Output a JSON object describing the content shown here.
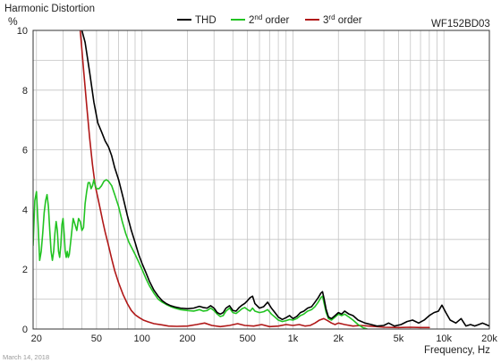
{
  "chart_data": {
    "type": "line",
    "title": "Harmonic Distortion",
    "ylabel": "%",
    "xlabel": "Frequency, Hz",
    "model": "WF152BD03",
    "date": "March 14, 2018",
    "x_scale": "log",
    "xlim": [
      19,
      20000
    ],
    "ylim": [
      0,
      10
    ],
    "grid": true,
    "legend_position": "top-center",
    "x_ticks": [
      {
        "value": 20,
        "label": "20"
      },
      {
        "value": 50,
        "label": "50"
      },
      {
        "value": 100,
        "label": "100"
      },
      {
        "value": 200,
        "label": "200"
      },
      {
        "value": 500,
        "label": "500"
      },
      {
        "value": 1000,
        "label": "1k"
      },
      {
        "value": 2000,
        "label": "2k"
      },
      {
        "value": 5000,
        "label": "5k"
      },
      {
        "value": 10000,
        "label": "10k"
      },
      {
        "value": 20000,
        "label": "20k"
      }
    ],
    "y_ticks": [
      {
        "value": 0,
        "label": "0"
      },
      {
        "value": 2,
        "label": "2"
      },
      {
        "value": 4,
        "label": "4"
      },
      {
        "value": 6,
        "label": "6"
      },
      {
        "value": 8,
        "label": "8"
      },
      {
        "value": 10,
        "label": "10"
      }
    ],
    "series": [
      {
        "name": "THD",
        "legend_base": "THD",
        "legend_sup": "",
        "legend_rest": "",
        "color": "#000000",
        "points": [
          [
            40,
            10
          ],
          [
            42,
            9.6
          ],
          [
            45,
            8.6
          ],
          [
            48,
            7.6
          ],
          [
            51,
            6.9
          ],
          [
            54,
            6.6
          ],
          [
            57,
            6.3
          ],
          [
            60,
            6.1
          ],
          [
            63,
            5.8
          ],
          [
            66,
            5.4
          ],
          [
            70,
            5.0
          ],
          [
            75,
            4.4
          ],
          [
            80,
            3.8
          ],
          [
            85,
            3.3
          ],
          [
            90,
            2.9
          ],
          [
            95,
            2.5
          ],
          [
            100,
            2.2
          ],
          [
            106,
            1.9
          ],
          [
            112,
            1.6
          ],
          [
            120,
            1.3
          ],
          [
            128,
            1.1
          ],
          [
            136,
            0.95
          ],
          [
            145,
            0.85
          ],
          [
            155,
            0.78
          ],
          [
            165,
            0.74
          ],
          [
            180,
            0.7
          ],
          [
            200,
            0.68
          ],
          [
            220,
            0.7
          ],
          [
            240,
            0.76
          ],
          [
            255,
            0.72
          ],
          [
            270,
            0.7
          ],
          [
            285,
            0.78
          ],
          [
            300,
            0.7
          ],
          [
            315,
            0.55
          ],
          [
            330,
            0.5
          ],
          [
            345,
            0.55
          ],
          [
            360,
            0.7
          ],
          [
            380,
            0.78
          ],
          [
            400,
            0.62
          ],
          [
            420,
            0.6
          ],
          [
            440,
            0.72
          ],
          [
            460,
            0.8
          ],
          [
            480,
            0.86
          ],
          [
            500,
            0.95
          ],
          [
            520,
            1.05
          ],
          [
            540,
            1.1
          ],
          [
            560,
            0.85
          ],
          [
            600,
            0.7
          ],
          [
            640,
            0.75
          ],
          [
            680,
            0.9
          ],
          [
            720,
            0.7
          ],
          [
            760,
            0.55
          ],
          [
            800,
            0.4
          ],
          [
            850,
            0.32
          ],
          [
            900,
            0.38
          ],
          [
            950,
            0.45
          ],
          [
            1000,
            0.35
          ],
          [
            1060,
            0.42
          ],
          [
            1120,
            0.55
          ],
          [
            1180,
            0.6
          ],
          [
            1250,
            0.7
          ],
          [
            1330,
            0.75
          ],
          [
            1400,
            0.9
          ],
          [
            1470,
            1.05
          ],
          [
            1530,
            1.2
          ],
          [
            1570,
            1.25
          ],
          [
            1610,
            1.0
          ],
          [
            1660,
            0.65
          ],
          [
            1720,
            0.4
          ],
          [
            1800,
            0.35
          ],
          [
            1900,
            0.45
          ],
          [
            2000,
            0.55
          ],
          [
            2100,
            0.5
          ],
          [
            2200,
            0.6
          ],
          [
            2350,
            0.5
          ],
          [
            2500,
            0.45
          ],
          [
            2700,
            0.3
          ],
          [
            3000,
            0.2
          ],
          [
            3300,
            0.15
          ],
          [
            3600,
            0.1
          ],
          [
            4000,
            0.12
          ],
          [
            4300,
            0.2
          ],
          [
            4700,
            0.1
          ],
          [
            5200,
            0.15
          ],
          [
            5700,
            0.25
          ],
          [
            6200,
            0.3
          ],
          [
            6800,
            0.2
          ],
          [
            7400,
            0.3
          ],
          [
            8000,
            0.45
          ],
          [
            8600,
            0.55
          ],
          [
            9200,
            0.6
          ],
          [
            9700,
            0.8
          ],
          [
            10300,
            0.55
          ],
          [
            11000,
            0.3
          ],
          [
            12000,
            0.2
          ],
          [
            13000,
            0.35
          ],
          [
            14000,
            0.1
          ],
          [
            15000,
            0.15
          ],
          [
            16000,
            0.1
          ],
          [
            17000,
            0.15
          ],
          [
            18000,
            0.2
          ],
          [
            19000,
            0.15
          ],
          [
            20000,
            0.1
          ]
        ]
      },
      {
        "name": "2nd order",
        "legend_base": "2",
        "legend_sup": "nd",
        "legend_rest": " order",
        "color": "#22c322",
        "points": [
          [
            19,
            2.8
          ],
          [
            19.5,
            4.3
          ],
          [
            20,
            4.6
          ],
          [
            20.5,
            3.5
          ],
          [
            21,
            2.3
          ],
          [
            21.5,
            2.6
          ],
          [
            22,
            3.2
          ],
          [
            22.5,
            3.9
          ],
          [
            23,
            4.3
          ],
          [
            23.5,
            4.5
          ],
          [
            24,
            4.1
          ],
          [
            24.5,
            3.3
          ],
          [
            25,
            2.6
          ],
          [
            25.5,
            2.3
          ],
          [
            26,
            2.6
          ],
          [
            26.5,
            3.2
          ],
          [
            27,
            3.6
          ],
          [
            27.5,
            3.3
          ],
          [
            28,
            2.6
          ],
          [
            28.5,
            2.4
          ],
          [
            29,
            2.8
          ],
          [
            29.5,
            3.5
          ],
          [
            30,
            3.7
          ],
          [
            30.5,
            3.2
          ],
          [
            31,
            2.6
          ],
          [
            31.5,
            2.4
          ],
          [
            32,
            2.6
          ],
          [
            32.5,
            2.4
          ],
          [
            33,
            2.5
          ],
          [
            34,
            3.1
          ],
          [
            35,
            3.7
          ],
          [
            36,
            3.5
          ],
          [
            37,
            3.3
          ],
          [
            38,
            3.7
          ],
          [
            39,
            3.6
          ],
          [
            40,
            3.3
          ],
          [
            41,
            3.4
          ],
          [
            42,
            4.2
          ],
          [
            43,
            4.6
          ],
          [
            44,
            4.9
          ],
          [
            45,
            4.9
          ],
          [
            46,
            4.7
          ],
          [
            47,
            4.8
          ],
          [
            48,
            5.0
          ],
          [
            49,
            4.8
          ],
          [
            50,
            4.7
          ],
          [
            52,
            4.7
          ],
          [
            54,
            4.8
          ],
          [
            56,
            4.95
          ],
          [
            58,
            5.0
          ],
          [
            60,
            4.95
          ],
          [
            63,
            4.8
          ],
          [
            66,
            4.5
          ],
          [
            70,
            4.1
          ],
          [
            74,
            3.6
          ],
          [
            78,
            3.2
          ],
          [
            82,
            2.9
          ],
          [
            86,
            2.7
          ],
          [
            90,
            2.5
          ],
          [
            95,
            2.25
          ],
          [
            100,
            2.0
          ],
          [
            106,
            1.7
          ],
          [
            112,
            1.45
          ],
          [
            120,
            1.2
          ],
          [
            128,
            1.0
          ],
          [
            136,
            0.9
          ],
          [
            145,
            0.82
          ],
          [
            155,
            0.75
          ],
          [
            165,
            0.7
          ],
          [
            180,
            0.65
          ],
          [
            200,
            0.62
          ],
          [
            220,
            0.6
          ],
          [
            240,
            0.65
          ],
          [
            255,
            0.6
          ],
          [
            270,
            0.62
          ],
          [
            285,
            0.7
          ],
          [
            300,
            0.62
          ],
          [
            315,
            0.5
          ],
          [
            330,
            0.42
          ],
          [
            345,
            0.45
          ],
          [
            360,
            0.6
          ],
          [
            380,
            0.7
          ],
          [
            400,
            0.55
          ],
          [
            420,
            0.52
          ],
          [
            440,
            0.6
          ],
          [
            460,
            0.68
          ],
          [
            480,
            0.72
          ],
          [
            500,
            0.65
          ],
          [
            520,
            0.6
          ],
          [
            540,
            0.7
          ],
          [
            560,
            0.6
          ],
          [
            600,
            0.55
          ],
          [
            640,
            0.58
          ],
          [
            680,
            0.65
          ],
          [
            720,
            0.5
          ],
          [
            760,
            0.4
          ],
          [
            800,
            0.3
          ],
          [
            850,
            0.25
          ],
          [
            900,
            0.28
          ],
          [
            950,
            0.32
          ],
          [
            1000,
            0.3
          ],
          [
            1060,
            0.35
          ],
          [
            1120,
            0.45
          ],
          [
            1180,
            0.5
          ],
          [
            1250,
            0.6
          ],
          [
            1330,
            0.65
          ],
          [
            1400,
            0.75
          ],
          [
            1470,
            0.9
          ],
          [
            1530,
            1.05
          ],
          [
            1570,
            1.1
          ],
          [
            1610,
            0.85
          ],
          [
            1660,
            0.55
          ],
          [
            1720,
            0.35
          ],
          [
            1800,
            0.3
          ],
          [
            1900,
            0.4
          ],
          [
            2000,
            0.5
          ],
          [
            2100,
            0.45
          ],
          [
            2200,
            0.5
          ],
          [
            2350,
            0.4
          ],
          [
            2500,
            0.3
          ],
          [
            2700,
            0.15
          ],
          [
            2900,
            0.05
          ],
          [
            3100,
            0.0
          ]
        ]
      },
      {
        "name": "3rd order",
        "legend_base": "3",
        "legend_sup": "rd",
        "legend_rest": " order",
        "color": "#b01818",
        "points": [
          [
            39,
            10
          ],
          [
            41,
            8.7
          ],
          [
            43,
            7.5
          ],
          [
            45,
            6.4
          ],
          [
            47,
            5.5
          ],
          [
            49,
            4.8
          ],
          [
            51,
            4.4
          ],
          [
            53,
            4.0
          ],
          [
            55,
            3.6
          ],
          [
            57,
            3.25
          ],
          [
            60,
            2.8
          ],
          [
            63,
            2.35
          ],
          [
            66,
            1.95
          ],
          [
            70,
            1.55
          ],
          [
            75,
            1.15
          ],
          [
            80,
            0.85
          ],
          [
            85,
            0.62
          ],
          [
            90,
            0.48
          ],
          [
            96,
            0.38
          ],
          [
            102,
            0.3
          ],
          [
            110,
            0.24
          ],
          [
            120,
            0.18
          ],
          [
            135,
            0.14
          ],
          [
            150,
            0.1
          ],
          [
            170,
            0.09
          ],
          [
            200,
            0.1
          ],
          [
            230,
            0.15
          ],
          [
            260,
            0.2
          ],
          [
            290,
            0.12
          ],
          [
            330,
            0.08
          ],
          [
            380,
            0.12
          ],
          [
            430,
            0.18
          ],
          [
            480,
            0.12
          ],
          [
            550,
            0.1
          ],
          [
            620,
            0.15
          ],
          [
            700,
            0.08
          ],
          [
            800,
            0.1
          ],
          [
            900,
            0.15
          ],
          [
            1000,
            0.12
          ],
          [
            1100,
            0.15
          ],
          [
            1200,
            0.1
          ],
          [
            1300,
            0.12
          ],
          [
            1400,
            0.2
          ],
          [
            1500,
            0.3
          ],
          [
            1600,
            0.35
          ],
          [
            1700,
            0.28
          ],
          [
            1800,
            0.2
          ],
          [
            1900,
            0.15
          ],
          [
            2000,
            0.2
          ],
          [
            2200,
            0.15
          ],
          [
            2500,
            0.1
          ],
          [
            2800,
            0.12
          ],
          [
            3200,
            0.1
          ],
          [
            3600,
            0.08
          ],
          [
            4000,
            0.06
          ],
          [
            5000,
            0.05
          ],
          [
            6000,
            0.06
          ],
          [
            7000,
            0.05
          ],
          [
            8000,
            0.05
          ]
        ]
      }
    ]
  }
}
